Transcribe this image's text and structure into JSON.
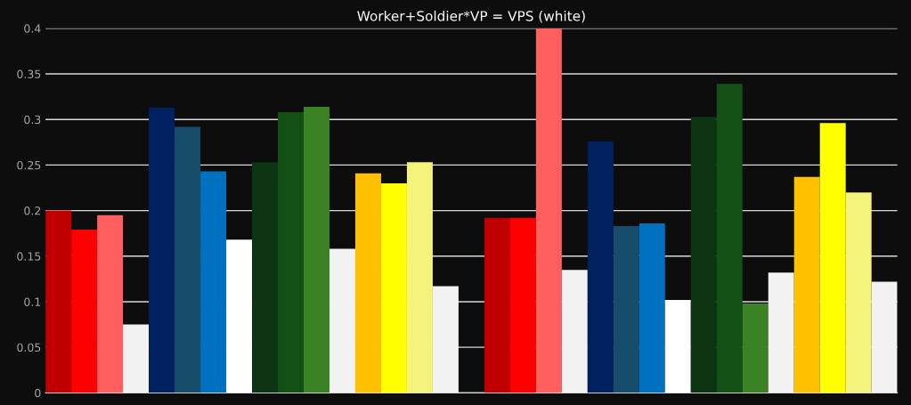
{
  "chart_data": {
    "type": "bar",
    "title": "Worker+Soldier*VP = VPS (white)",
    "categories": [
      null,
      null,
      null,
      null,
      null,
      null,
      null,
      null,
      null,
      null,
      null,
      null,
      null,
      null,
      null,
      null,
      null,
      null,
      null,
      null,
      null,
      null,
      null,
      null,
      null,
      null,
      null,
      null,
      null,
      null,
      null,
      null,
      null
    ],
    "values": [
      0.2,
      0.179,
      0.195,
      0.075,
      0.313,
      0.292,
      0.243,
      0.168,
      0.253,
      0.308,
      0.314,
      0.158,
      0.241,
      0.23,
      0.253,
      0.117,
      null,
      0.192,
      0.192,
      0.4,
      0.135,
      0.276,
      0.183,
      0.186,
      0.102,
      0.303,
      0.339,
      0.098,
      0.132,
      0.237,
      0.296,
      0.22,
      0.122
    ],
    "colors": [
      "#c00000",
      "#ff0000",
      "#ff5f5f",
      "#f2f2f2",
      "#002060",
      "#174d6b",
      "#0070c0",
      "#ffffff",
      "#0d3512",
      "#125016",
      "#3a8224",
      "#f2f2f2",
      "#ffc000",
      "#ffff00",
      "#f4f47a",
      "#f2f2f2",
      "#000000",
      "#c00000",
      "#ff0000",
      "#ff5f5f",
      "#f2f2f2",
      "#002060",
      "#174d6b",
      "#0070c0",
      "#ffffff",
      "#0d3512",
      "#125016",
      "#3a8224",
      "#f2f2f2",
      "#ffc000",
      "#ffff00",
      "#f4f47a",
      "#f2f2f2"
    ],
    "ylim": [
      0,
      0.4
    ],
    "yticks": [
      {
        "value": 0,
        "label": "0"
      },
      0.05,
      0.1,
      0.15,
      0.2,
      0.25,
      0.3,
      0.35,
      0.4
    ],
    "grid": "y"
  }
}
